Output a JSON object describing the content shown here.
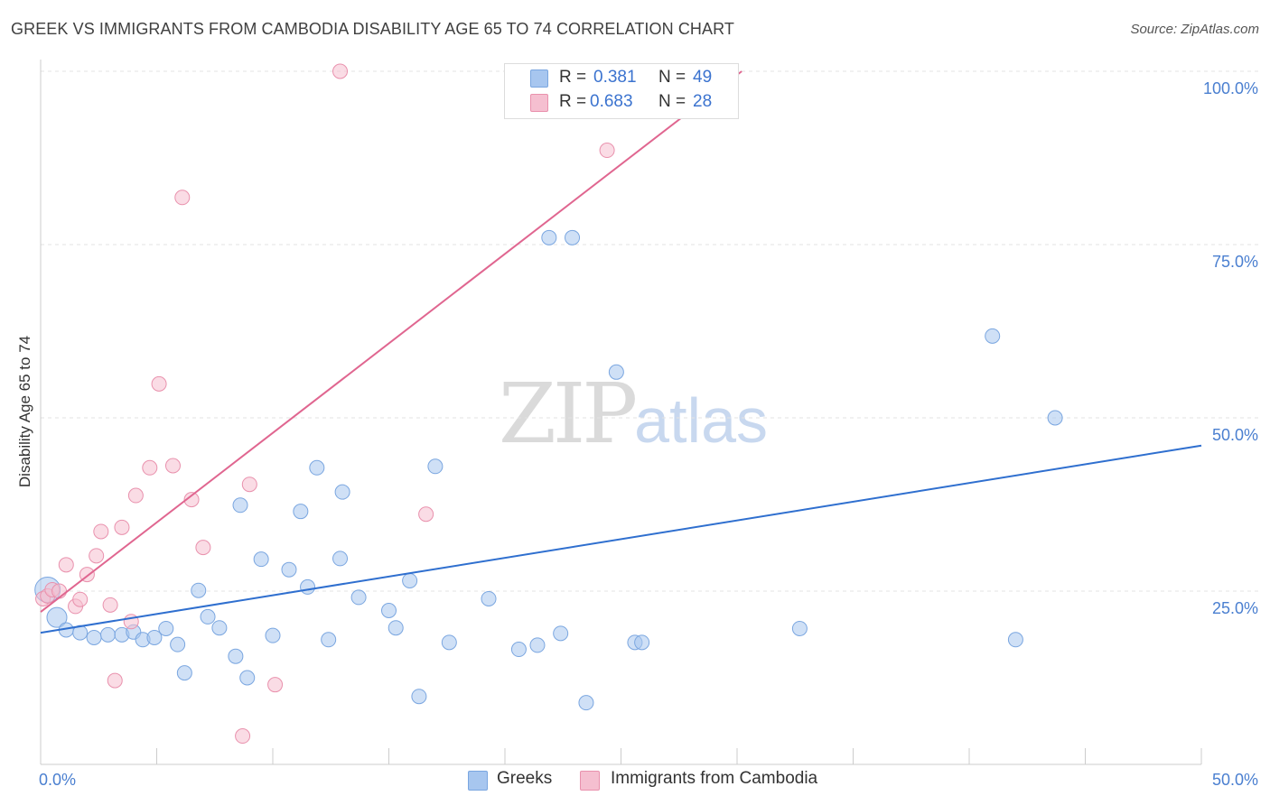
{
  "chart_data": {
    "type": "scatter",
    "title": "GREEK VS IMMIGRANTS FROM CAMBODIA DISABILITY AGE 65 TO 74 CORRELATION CHART",
    "source": "Source: ZipAtlas.com",
    "ylabel": "Disability Age 65 to 74",
    "xlim": [
      0,
      50
    ],
    "ylim": [
      0,
      105
    ],
    "x_ticks": [
      "0.0%",
      "50.0%"
    ],
    "y_ticks": [
      {
        "value": 25,
        "label": "25.0%"
      },
      {
        "value": 50,
        "label": "50.0%"
      },
      {
        "value": 75,
        "label": "75.0%"
      },
      {
        "value": 100,
        "label": "100.0%"
      }
    ],
    "grid": true,
    "legend_top": [
      {
        "r_label": "R =",
        "r_value": "0.381",
        "n_label": "N =",
        "n_value": "49"
      },
      {
        "r_label": "R =",
        "r_value": "0.683",
        "n_label": "N =",
        "n_value": "28"
      }
    ],
    "series": [
      {
        "name": "Greeks",
        "color": "#a7c6ef",
        "stroke": "#7aa6e0",
        "line_color": "#2f6fcf",
        "trend": [
          [
            0,
            19.0
          ],
          [
            50,
            46.0
          ]
        ],
        "points": [
          [
            0.3,
            25.2
          ],
          [
            0.7,
            21.2
          ],
          [
            1.1,
            19.4
          ],
          [
            1.7,
            19.0
          ],
          [
            2.3,
            18.3
          ],
          [
            2.9,
            18.7
          ],
          [
            3.5,
            18.7
          ],
          [
            4.0,
            19.1
          ],
          [
            4.4,
            18.0
          ],
          [
            4.9,
            18.3
          ],
          [
            5.4,
            19.6
          ],
          [
            5.9,
            17.3
          ],
          [
            6.2,
            13.2
          ],
          [
            6.8,
            25.1
          ],
          [
            7.2,
            21.3
          ],
          [
            7.7,
            19.7
          ],
          [
            8.4,
            15.6
          ],
          [
            8.6,
            37.4
          ],
          [
            8.9,
            12.5
          ],
          [
            9.5,
            29.6
          ],
          [
            10.0,
            18.6
          ],
          [
            10.7,
            28.1
          ],
          [
            11.2,
            36.5
          ],
          [
            11.5,
            25.6
          ],
          [
            11.9,
            42.8
          ],
          [
            12.4,
            18.0
          ],
          [
            12.9,
            29.7
          ],
          [
            13.0,
            39.3
          ],
          [
            13.7,
            24.1
          ],
          [
            15.0,
            22.2
          ],
          [
            15.3,
            19.7
          ],
          [
            15.9,
            26.5
          ],
          [
            16.3,
            9.8
          ],
          [
            17.0,
            43.0
          ],
          [
            17.6,
            17.6
          ],
          [
            19.3,
            23.9
          ],
          [
            20.6,
            16.6
          ],
          [
            21.4,
            17.2
          ],
          [
            21.9,
            76.0
          ],
          [
            22.4,
            18.9
          ],
          [
            22.9,
            76.0
          ],
          [
            23.5,
            8.9
          ],
          [
            24.8,
            56.6
          ],
          [
            25.6,
            17.6
          ],
          [
            25.9,
            17.6
          ],
          [
            32.7,
            19.6
          ],
          [
            41.0,
            61.8
          ],
          [
            42.0,
            18.0
          ],
          [
            43.7,
            50.0
          ]
        ]
      },
      {
        "name": "Immigrants from Cambodia",
        "color": "#f5bfd0",
        "stroke": "#e991ad",
        "line_color": "#e06690",
        "trend": [
          [
            0,
            22.0
          ],
          [
            30.2,
            100.0
          ]
        ],
        "points": [
          [
            0.1,
            23.9
          ],
          [
            0.3,
            24.3
          ],
          [
            0.5,
            25.2
          ],
          [
            0.8,
            25.0
          ],
          [
            1.1,
            28.8
          ],
          [
            1.5,
            22.8
          ],
          [
            1.7,
            23.8
          ],
          [
            2.0,
            27.4
          ],
          [
            2.4,
            30.1
          ],
          [
            2.6,
            33.6
          ],
          [
            3.0,
            23.0
          ],
          [
            3.2,
            12.1
          ],
          [
            3.5,
            34.2
          ],
          [
            3.9,
            20.6
          ],
          [
            4.1,
            38.8
          ],
          [
            4.7,
            42.8
          ],
          [
            5.1,
            54.9
          ],
          [
            5.7,
            43.1
          ],
          [
            6.1,
            81.8
          ],
          [
            6.5,
            38.2
          ],
          [
            7.0,
            31.3
          ],
          [
            8.7,
            4.1
          ],
          [
            9.0,
            40.4
          ],
          [
            10.1,
            11.5
          ],
          [
            12.9,
            100.0
          ],
          [
            16.6,
            36.1
          ],
          [
            24.4,
            88.6
          ],
          [
            29.0,
            100.0
          ]
        ]
      }
    ]
  },
  "watermark": {
    "zip": "ZIP",
    "atlas": "atlas"
  }
}
